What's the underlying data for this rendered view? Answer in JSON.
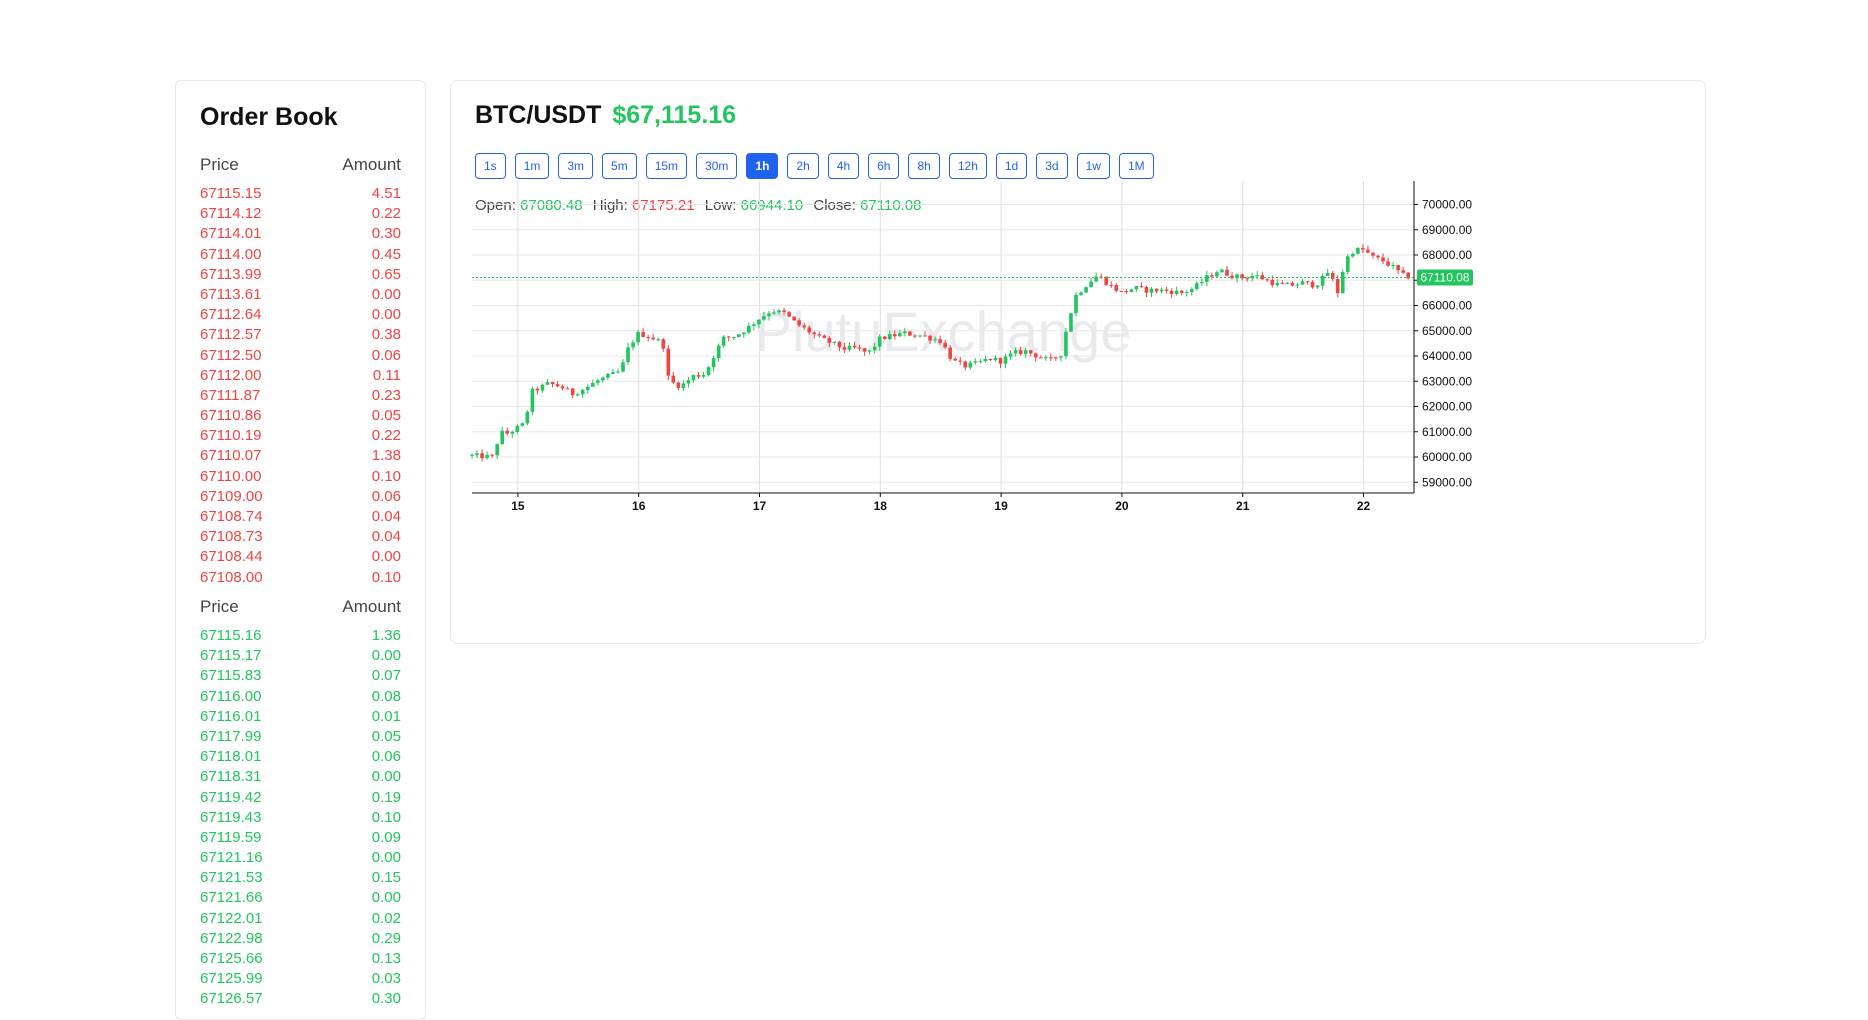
{
  "orderbook": {
    "title": "Order Book",
    "col_price": "Price",
    "col_amount": "Amount",
    "asks": [
      {
        "price": "67115.15",
        "amount": "4.51"
      },
      {
        "price": "67114.12",
        "amount": "0.22"
      },
      {
        "price": "67114.01",
        "amount": "0.30"
      },
      {
        "price": "67114.00",
        "amount": "0.45"
      },
      {
        "price": "67113.99",
        "amount": "0.65"
      },
      {
        "price": "67113.61",
        "amount": "0.00"
      },
      {
        "price": "67112.64",
        "amount": "0.00"
      },
      {
        "price": "67112.57",
        "amount": "0.38"
      },
      {
        "price": "67112.50",
        "amount": "0.06"
      },
      {
        "price": "67112.00",
        "amount": "0.11"
      },
      {
        "price": "67111.87",
        "amount": "0.23"
      },
      {
        "price": "67110.86",
        "amount": "0.05"
      },
      {
        "price": "67110.19",
        "amount": "0.22"
      },
      {
        "price": "67110.07",
        "amount": "1.38"
      },
      {
        "price": "67110.00",
        "amount": "0.10"
      },
      {
        "price": "67109.00",
        "amount": "0.06"
      },
      {
        "price": "67108.74",
        "amount": "0.04"
      },
      {
        "price": "67108.73",
        "amount": "0.04"
      },
      {
        "price": "67108.44",
        "amount": "0.00"
      },
      {
        "price": "67108.00",
        "amount": "0.10"
      }
    ],
    "bids": [
      {
        "price": "67115.16",
        "amount": "1.36"
      },
      {
        "price": "67115.17",
        "amount": "0.00"
      },
      {
        "price": "67115.83",
        "amount": "0.07"
      },
      {
        "price": "67116.00",
        "amount": "0.08"
      },
      {
        "price": "67116.01",
        "amount": "0.01"
      },
      {
        "price": "67117.99",
        "amount": "0.05"
      },
      {
        "price": "67118.01",
        "amount": "0.06"
      },
      {
        "price": "67118.31",
        "amount": "0.00"
      },
      {
        "price": "67119.42",
        "amount": "0.19"
      },
      {
        "price": "67119.43",
        "amount": "0.10"
      },
      {
        "price": "67119.59",
        "amount": "0.09"
      },
      {
        "price": "67121.16",
        "amount": "0.00"
      },
      {
        "price": "67121.53",
        "amount": "0.15"
      },
      {
        "price": "67121.66",
        "amount": "0.00"
      },
      {
        "price": "67122.01",
        "amount": "0.02"
      },
      {
        "price": "67122.98",
        "amount": "0.29"
      },
      {
        "price": "67125.66",
        "amount": "0.13"
      },
      {
        "price": "67125.99",
        "amount": "0.03"
      },
      {
        "price": "67126.57",
        "amount": "0.30"
      }
    ]
  },
  "header": {
    "pair": "BTC/USDT",
    "last_price": "$67,115.16"
  },
  "intervals": [
    "1s",
    "1m",
    "3m",
    "5m",
    "15m",
    "30m",
    "1h",
    "2h",
    "4h",
    "6h",
    "8h",
    "12h",
    "1d",
    "3d",
    "1w",
    "1M"
  ],
  "active_interval": "1h",
  "ohlc": {
    "open_label": "Open:",
    "open": "67080.48",
    "high_label": "High:",
    "high": "67175.21",
    "low_label": "Low:",
    "low": "66944.10",
    "close_label": "Close:",
    "close": "67110.08"
  },
  "colors": {
    "up": "#22c55e",
    "down": "#ef4444",
    "accent": "#1d63ed"
  },
  "chart_data": {
    "type": "candlestick",
    "watermark": "PlutuExchange",
    "x_tick_labels": [
      "15",
      "16",
      "17",
      "18",
      "19",
      "20",
      "21",
      "22"
    ],
    "y_tick_labels": [
      "70000.00",
      "69000.00",
      "68000.00",
      "67000.00",
      "66000.00",
      "65000.00",
      "64000.00",
      "63000.00",
      "62000.00",
      "61000.00",
      "60000.00",
      "59000.00"
    ],
    "ylim": [
      58600,
      71200
    ],
    "x_range_days": [
      14.62,
      22.4
    ],
    "current_price_label": "67110.08",
    "current_price": 67110.08,
    "grid": true,
    "close_path": [
      [
        14.62,
        60050
      ],
      [
        14.8,
        60000
      ],
      [
        14.85,
        61000
      ],
      [
        14.9,
        60900
      ],
      [
        15.05,
        61300
      ],
      [
        15.12,
        62600
      ],
      [
        15.25,
        62900
      ],
      [
        15.35,
        62800
      ],
      [
        15.45,
        62500
      ],
      [
        15.55,
        62700
      ],
      [
        15.65,
        63000
      ],
      [
        15.75,
        63200
      ],
      [
        15.85,
        63400
      ],
      [
        15.92,
        64400
      ],
      [
        16.0,
        64900
      ],
      [
        16.1,
        64750
      ],
      [
        16.2,
        64500
      ],
      [
        16.25,
        63000
      ],
      [
        16.35,
        62800
      ],
      [
        16.45,
        63200
      ],
      [
        16.55,
        63300
      ],
      [
        16.62,
        64000
      ],
      [
        16.7,
        64700
      ],
      [
        16.8,
        64800
      ],
      [
        16.9,
        65100
      ],
      [
        17.0,
        65500
      ],
      [
        17.1,
        65800
      ],
      [
        17.2,
        65700
      ],
      [
        17.3,
        65300
      ],
      [
        17.4,
        65000
      ],
      [
        17.5,
        64700
      ],
      [
        17.6,
        64500
      ],
      [
        17.7,
        64300
      ],
      [
        17.8,
        64300
      ],
      [
        17.9,
        64100
      ],
      [
        18.0,
        64700
      ],
      [
        18.1,
        64800
      ],
      [
        18.2,
        64900
      ],
      [
        18.35,
        64800
      ],
      [
        18.5,
        64600
      ],
      [
        18.6,
        63800
      ],
      [
        18.7,
        63600
      ],
      [
        18.8,
        63700
      ],
      [
        18.9,
        63900
      ],
      [
        19.0,
        63800
      ],
      [
        19.1,
        64100
      ],
      [
        19.2,
        64200
      ],
      [
        19.3,
        64000
      ],
      [
        19.4,
        63800
      ],
      [
        19.5,
        64100
      ],
      [
        19.55,
        65300
      ],
      [
        19.62,
        66400
      ],
      [
        19.72,
        66900
      ],
      [
        19.8,
        67200
      ],
      [
        19.9,
        66800
      ],
      [
        20.0,
        66500
      ],
      [
        20.1,
        66700
      ],
      [
        20.2,
        66600
      ],
      [
        20.35,
        66600
      ],
      [
        20.5,
        66500
      ],
      [
        20.6,
        66700
      ],
      [
        20.7,
        67100
      ],
      [
        20.8,
        67400
      ],
      [
        20.9,
        67200
      ],
      [
        21.0,
        67100
      ],
      [
        21.1,
        67200
      ],
      [
        21.2,
        67000
      ],
      [
        21.3,
        66800
      ],
      [
        21.4,
        66800
      ],
      [
        21.5,
        66900
      ],
      [
        21.6,
        66800
      ],
      [
        21.65,
        67000
      ],
      [
        21.72,
        67400
      ],
      [
        21.78,
        66400
      ],
      [
        21.85,
        67800
      ],
      [
        21.92,
        68200
      ],
      [
        22.0,
        68200
      ],
      [
        22.08,
        67900
      ],
      [
        22.15,
        67800
      ],
      [
        22.25,
        67500
      ],
      [
        22.32,
        67200
      ],
      [
        22.4,
        67110
      ]
    ]
  }
}
